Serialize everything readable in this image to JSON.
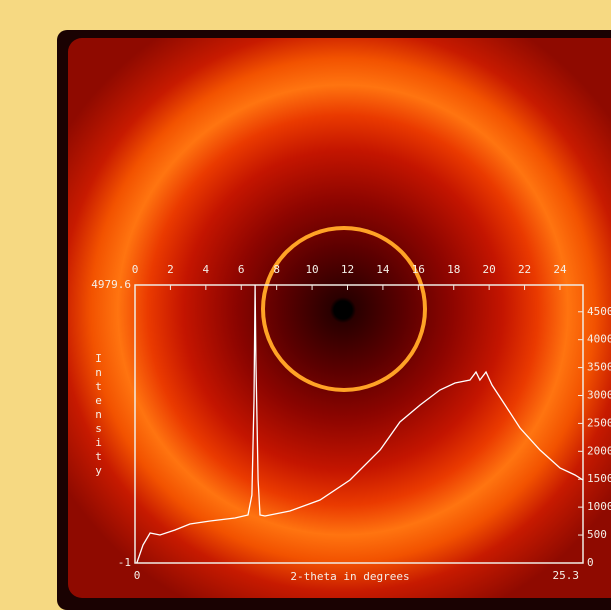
{
  "chart_data": {
    "type": "line",
    "x_label": "2-theta in degrees",
    "y_label": "Intensity",
    "xlim": [
      0,
      25.3
    ],
    "xticks": [
      0,
      2,
      4,
      6,
      8,
      10,
      12,
      14,
      16,
      18,
      20,
      22,
      24
    ],
    "ylim": [
      -1,
      4979.6
    ],
    "y2lim": [
      -1,
      4979.6
    ],
    "y2ticks": [
      0,
      500,
      1000,
      1500,
      2000,
      2500,
      3000,
      3500,
      4000,
      4500
    ],
    "color": "#ffffff",
    "x": [
      0.1,
      0.45,
      0.85,
      1.41,
      2.26,
      3.1,
      4.24,
      5.65,
      6.38,
      6.6,
      6.72,
      6.78,
      6.83,
      6.95,
      7.06,
      7.34,
      8.75,
      10.45,
      12.14,
      13.84,
      14.96,
      16.1,
      17.22,
      18.07,
      18.92,
      19.26,
      19.48,
      19.82,
      20.16,
      20.9,
      21.74,
      22.87,
      24.0,
      24.85,
      25.3
    ],
    "values": [
      -1,
      322,
      536,
      501,
      590,
      698,
      752,
      805,
      859,
      1217,
      2919,
      4979,
      3636,
      1486,
      859,
      841,
      931,
      1128,
      1486,
      2024,
      2525,
      2830,
      3099,
      3224,
      3278,
      3421,
      3278,
      3421,
      3188,
      2830,
      2418,
      2024,
      1701,
      1576,
      1486
    ]
  }
}
